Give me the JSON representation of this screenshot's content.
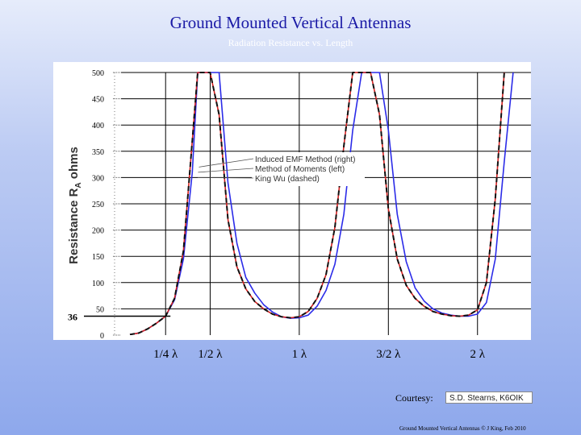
{
  "slide": {
    "title": "Ground Mounted Vertical Antennas",
    "subtitle": "Radiation Resistance vs. Length",
    "courtesy_label": "Courtesy:",
    "courtesy_name": "S.D. Stearns, K6OIK",
    "footer": "Ground Mounted Vertical Antennas © J King, Feb 2010"
  },
  "chart_data": {
    "type": "line",
    "ylabel": "Resistance R",
    "ylabel_sub": "A",
    "ylabel_suffix": " ohms",
    "ylim": [
      0,
      500
    ],
    "yticks": [
      0,
      50,
      100,
      150,
      200,
      250,
      300,
      350,
      400,
      450,
      500
    ],
    "xlim": [
      0,
      2.3
    ],
    "xticks": [
      {
        "value": 0.25,
        "label": "1/4 λ"
      },
      {
        "value": 0.5,
        "label": "1/2 λ"
      },
      {
        "value": 1.0,
        "label": "1 λ"
      },
      {
        "value": 1.5,
        "label": "3/2 λ"
      },
      {
        "value": 2.0,
        "label": "2 λ"
      }
    ],
    "marker": {
      "y": 36,
      "label": "36"
    },
    "series": [
      {
        "name": "Induced EMF Method (right)",
        "color": "#2b2be8",
        "dashed": false,
        "x": [
          0.05,
          0.1,
          0.15,
          0.2,
          0.25,
          0.3,
          0.35,
          0.4,
          0.43,
          0.5,
          0.55,
          0.6,
          0.65,
          0.7,
          0.75,
          0.8,
          0.85,
          0.9,
          0.95,
          1.0,
          1.05,
          1.1,
          1.15,
          1.2,
          1.25,
          1.3,
          1.35,
          1.38,
          1.42,
          1.45,
          1.5,
          1.55,
          1.6,
          1.65,
          1.7,
          1.75,
          1.8,
          1.85,
          1.9,
          1.95,
          2.0,
          2.05,
          2.1,
          2.15,
          2.2
        ],
        "values": [
          1,
          4,
          12,
          23,
          36,
          67,
          145,
          310,
          500,
          500,
          500,
          290,
          175,
          110,
          80,
          58,
          44,
          35,
          32,
          33,
          38,
          55,
          85,
          135,
          230,
          390,
          500,
          500,
          500,
          500,
          390,
          230,
          140,
          90,
          65,
          50,
          42,
          38,
          36,
          36,
          40,
          62,
          145,
          330,
          500
        ]
      },
      {
        "name": "Method of Moments (left)",
        "color": "#d42020",
        "dashed": false,
        "x": [
          0.05,
          0.1,
          0.15,
          0.2,
          0.25,
          0.3,
          0.35,
          0.4,
          0.43,
          0.47,
          0.5,
          0.55,
          0.6,
          0.65,
          0.7,
          0.75,
          0.8,
          0.85,
          0.9,
          0.95,
          1.0,
          1.05,
          1.1,
          1.15,
          1.2,
          1.25,
          1.3,
          1.35,
          1.4,
          1.45,
          1.5,
          1.55,
          1.6,
          1.65,
          1.7,
          1.75,
          1.8,
          1.85,
          1.9,
          1.95,
          2.0,
          2.05,
          2.1,
          2.15
        ],
        "values": [
          1,
          4,
          12,
          23,
          36,
          70,
          160,
          370,
          500,
          500,
          500,
          420,
          220,
          130,
          88,
          64,
          50,
          40,
          35,
          33,
          35,
          45,
          70,
          115,
          205,
          360,
          500,
          500,
          500,
          420,
          240,
          145,
          95,
          70,
          55,
          45,
          40,
          37,
          36,
          38,
          48,
          100,
          260,
          500
        ]
      },
      {
        "name": "King Wu (dashed)",
        "color": "#111111",
        "dashed": true,
        "x": [
          0.05,
          0.1,
          0.15,
          0.2,
          0.25,
          0.3,
          0.35,
          0.4,
          0.43,
          0.47,
          0.5,
          0.55,
          0.6,
          0.65,
          0.7,
          0.75,
          0.8,
          0.85,
          0.9,
          0.95,
          1.0,
          1.05,
          1.1,
          1.15,
          1.2,
          1.25,
          1.3,
          1.35,
          1.4,
          1.45,
          1.5,
          1.55,
          1.6,
          1.65,
          1.7,
          1.75,
          1.8,
          1.85,
          1.9,
          1.95,
          2.0,
          2.05,
          2.1,
          2.15
        ],
        "values": [
          1,
          4,
          12,
          23,
          36,
          70,
          160,
          370,
          500,
          500,
          500,
          420,
          220,
          130,
          88,
          64,
          50,
          40,
          35,
          33,
          35,
          45,
          70,
          115,
          205,
          360,
          500,
          500,
          500,
          420,
          240,
          145,
          95,
          70,
          55,
          45,
          40,
          37,
          36,
          38,
          48,
          100,
          260,
          500
        ]
      }
    ],
    "legend_placement": "middle",
    "grid": true
  }
}
